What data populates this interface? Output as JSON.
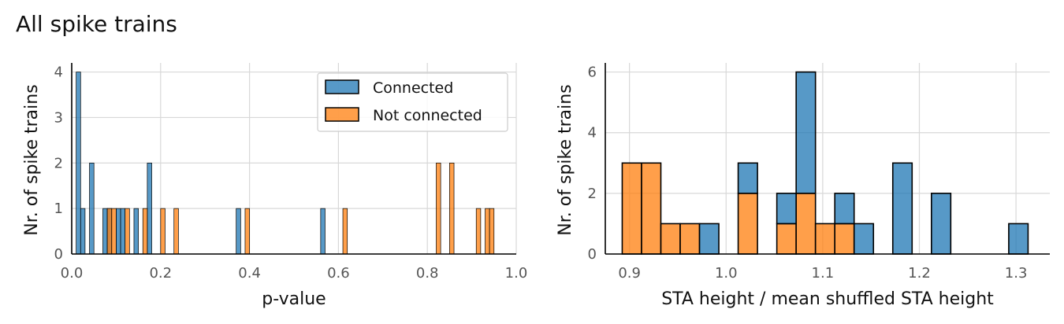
{
  "figure": {
    "suptitle": "All spike trains"
  },
  "chart_data": [
    {
      "type": "bar",
      "subtype": "histogram",
      "xlabel": "p-value",
      "ylabel": "Nr. of spike trains",
      "xlim": [
        0,
        1
      ],
      "ylim": [
        0,
        4.2
      ],
      "xticks": [
        0.0,
        0.2,
        0.4,
        0.6,
        0.8,
        1.0
      ],
      "xtick_labels": [
        "0.0",
        "0.2",
        "0.4",
        "0.6",
        "0.8",
        "1.0"
      ],
      "yticks": [
        0,
        1,
        2,
        3,
        4
      ],
      "ytick_labels": [
        "0",
        "1",
        "2",
        "3",
        "4"
      ],
      "grid": true,
      "legend_position": "top-right",
      "bin_width": 0.01,
      "series": [
        {
          "name": "Connected",
          "color": "#1f77b4",
          "bins": [
            {
              "x0": 0.01,
              "value": 4
            },
            {
              "x0": 0.02,
              "value": 1
            },
            {
              "x0": 0.04,
              "value": 2
            },
            {
              "x0": 0.07,
              "value": 1
            },
            {
              "x0": 0.08,
              "value": 1
            },
            {
              "x0": 0.1,
              "value": 1
            },
            {
              "x0": 0.11,
              "value": 1
            },
            {
              "x0": 0.14,
              "value": 1
            },
            {
              "x0": 0.17,
              "value": 2
            },
            {
              "x0": 0.37,
              "value": 1
            },
            {
              "x0": 0.56,
              "value": 1
            }
          ]
        },
        {
          "name": "Not connected",
          "color": "#ff7f0e",
          "bins": [
            {
              "x0": 0.08,
              "value": 1
            },
            {
              "x0": 0.09,
              "value": 1
            },
            {
              "x0": 0.12,
              "value": 1
            },
            {
              "x0": 0.16,
              "value": 1
            },
            {
              "x0": 0.2,
              "value": 1
            },
            {
              "x0": 0.23,
              "value": 1
            },
            {
              "x0": 0.39,
              "value": 1
            },
            {
              "x0": 0.61,
              "value": 1
            },
            {
              "x0": 0.82,
              "value": 2
            },
            {
              "x0": 0.85,
              "value": 2
            },
            {
              "x0": 0.91,
              "value": 1
            },
            {
              "x0": 0.93,
              "value": 1
            },
            {
              "x0": 0.94,
              "value": 1
            }
          ]
        }
      ]
    },
    {
      "type": "bar",
      "subtype": "stacked-histogram",
      "xlabel": "STA height / mean shuffled STA height",
      "ylabel": "Nr. of spike trains",
      "xlim": [
        0.875,
        1.335
      ],
      "ylim": [
        0,
        6.3
      ],
      "xticks": [
        0.9,
        1.0,
        1.1,
        1.2,
        1.3
      ],
      "xtick_labels": [
        "0.9",
        "1.0",
        "1.1",
        "1.2",
        "1.3"
      ],
      "yticks": [
        0,
        2,
        4,
        6
      ],
      "ytick_labels": [
        "0",
        "2",
        "4",
        "6"
      ],
      "grid": true,
      "bin_edges": [
        0.8925,
        0.9125,
        0.9325,
        0.9525,
        0.9725,
        0.9925,
        1.0125,
        1.0325,
        1.0525,
        1.0725,
        1.0925,
        1.1125,
        1.1325,
        1.1525,
        1.1725,
        1.1925,
        1.2125,
        1.2325,
        1.2525,
        1.2725,
        1.2925,
        1.3125
      ],
      "series": [
        {
          "name": "Not connected",
          "color": "#ff7f0e",
          "values": [
            3,
            3,
            1,
            1,
            0,
            0,
            2,
            0,
            1,
            2,
            1,
            1,
            0,
            0,
            0,
            0,
            0,
            0,
            0,
            0,
            0
          ]
        },
        {
          "name": "Connected",
          "color": "#1f77b4",
          "values": [
            0,
            0,
            0,
            0,
            1,
            0,
            1,
            0,
            1,
            4,
            0,
            1,
            1,
            0,
            3,
            0,
            2,
            0,
            0,
            0,
            1
          ]
        }
      ]
    }
  ]
}
